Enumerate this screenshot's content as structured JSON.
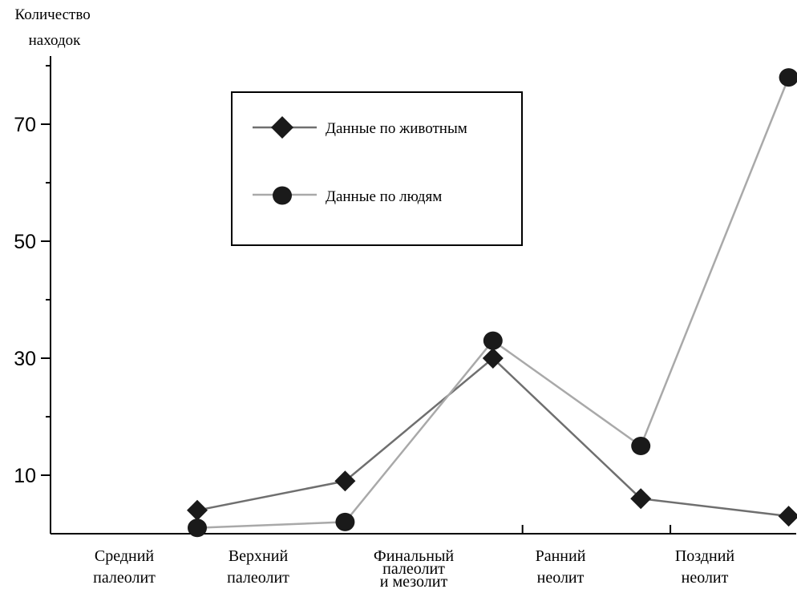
{
  "chart_data": {
    "type": "line",
    "ylabel": [
      "Количество",
      "находок"
    ],
    "xlabel": "",
    "ylim": [
      0,
      80
    ],
    "yticks": [
      10,
      30,
      50,
      70
    ],
    "ytick_labels": [
      "10",
      "30",
      "50",
      "70"
    ],
    "yticks_minor": [
      20,
      40,
      60,
      80
    ],
    "categories": [
      [
        "Средний",
        "палеолит"
      ],
      [
        "Верхний",
        "палеолит"
      ],
      [
        "Финальный",
        "палеолит",
        "и мезолит"
      ],
      [
        "Ранний",
        "неолит"
      ],
      [
        "Поздний",
        "неолит"
      ]
    ],
    "x_axis_ticks": [
      3.2,
      4.2,
      5.2
    ],
    "grid": false,
    "legend_position": "top-center",
    "series": [
      {
        "name": "Данные по животным",
        "marker": "diamond",
        "color": "#6f6f6f",
        "x": [
          1.0,
          2.0,
          3.0,
          4.0,
          5.0
        ],
        "y": [
          4,
          9,
          30,
          6,
          3
        ]
      },
      {
        "name": "Данные по людям",
        "marker": "circle",
        "color": "#a9a9a9",
        "x": [
          1.0,
          2.0,
          3.0,
          4.0,
          5.0
        ],
        "y": [
          1,
          2,
          33,
          15,
          78
        ]
      }
    ]
  }
}
